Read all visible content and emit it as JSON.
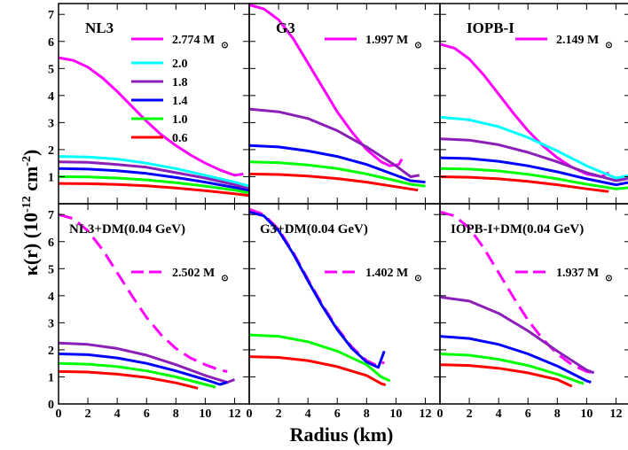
{
  "chart_data": {
    "type": "line",
    "xlabel": "Radius (km)",
    "ylabel": "κ(r) (10",
    "ylabel_exp1": "-12",
    "ylabel_unit": " cm",
    "ylabel_exp2": "-2",
    "ylabel_close": ")",
    "xlim": [
      0,
      13
    ],
    "xticks": [
      "0",
      "2",
      "4",
      "6",
      "8",
      "10",
      "12"
    ],
    "ylim_top": [
      0,
      7.4
    ],
    "yticks_top": [
      "1",
      "2",
      "3",
      "4",
      "5",
      "6",
      "7"
    ],
    "ylim_bottom": [
      0,
      7.4
    ],
    "yticks_bottom": [
      "0",
      "1",
      "2",
      "3",
      "4",
      "5",
      "6",
      "7"
    ],
    "colors": {
      "2.774": "#ff00ff",
      "2.0": "#00ffff",
      "1.8": "#8b1fb8",
      "1.4": "#0000ff",
      "1.0": "#00ff00",
      "0.6": "#ff0000"
    },
    "legend_mass_labels": [
      "2.774 M",
      "2.0",
      "1.8",
      "1.4",
      "1.0",
      "0.6"
    ],
    "panels": [
      {
        "title": "NL3",
        "max_mass_label": "2.774 M",
        "series": [
          {
            "name": "2.774 M",
            "color": "#ff00ff",
            "style": "solid",
            "x": [
              0,
              1,
              2,
              3,
              4,
              5,
              6,
              7,
              8,
              9,
              10,
              11,
              12,
              12.6
            ],
            "y": [
              5.4,
              5.3,
              5.05,
              4.65,
              4.15,
              3.6,
              3.05,
              2.55,
              2.15,
              1.8,
              1.5,
              1.25,
              1.05,
              1.1
            ]
          },
          {
            "name": "2.0",
            "color": "#00ffff",
            "style": "solid",
            "x": [
              0,
              2,
              4,
              6,
              8,
              10,
              12,
              13
            ],
            "y": [
              1.75,
              1.73,
              1.65,
              1.5,
              1.3,
              1.05,
              0.8,
              0.65
            ]
          },
          {
            "name": "1.8",
            "color": "#8b1fb8",
            "style": "solid",
            "x": [
              0,
              2,
              4,
              6,
              8,
              10,
              12,
              13
            ],
            "y": [
              1.55,
              1.53,
              1.45,
              1.35,
              1.15,
              0.95,
              0.7,
              0.55
            ]
          },
          {
            "name": "1.4",
            "color": "#0000ff",
            "style": "solid",
            "x": [
              0,
              2,
              4,
              6,
              8,
              10,
              12,
              13
            ],
            "y": [
              1.3,
              1.28,
              1.22,
              1.12,
              0.97,
              0.8,
              0.6,
              0.48
            ]
          },
          {
            "name": "1.0",
            "color": "#00ff00",
            "style": "solid",
            "x": [
              0,
              2,
              4,
              6,
              8,
              10,
              12,
              13
            ],
            "y": [
              1.0,
              0.99,
              0.95,
              0.88,
              0.78,
              0.65,
              0.5,
              0.4
            ]
          },
          {
            "name": "0.6",
            "color": "#ff0000",
            "style": "solid",
            "x": [
              0,
              2,
              4,
              6,
              8,
              10,
              12,
              13
            ],
            "y": [
              0.75,
              0.74,
              0.71,
              0.66,
              0.58,
              0.48,
              0.37,
              0.3
            ]
          }
        ]
      },
      {
        "title": "G3",
        "max_mass_label": "1.997 M",
        "series": [
          {
            "name": "1.997 M",
            "color": "#ff00ff",
            "style": "solid",
            "x": [
              0,
              1,
              2,
              3,
              4,
              5,
              6,
              7,
              8,
              9,
              9.6,
              10.2,
              10.4
            ],
            "y": [
              7.35,
              7.2,
              6.8,
              6.1,
              5.2,
              4.3,
              3.4,
              2.65,
              2.0,
              1.55,
              1.4,
              1.45,
              1.65
            ]
          },
          {
            "name": "1.8",
            "color": "#8b1fb8",
            "style": "solid",
            "x": [
              0,
              2,
              4,
              6,
              8,
              10,
              11,
              11.6
            ],
            "y": [
              3.5,
              3.4,
              3.15,
              2.7,
              2.1,
              1.4,
              1.0,
              1.05
            ]
          },
          {
            "name": "1.4",
            "color": "#0000ff",
            "style": "solid",
            "x": [
              0,
              2,
              4,
              6,
              8,
              10,
              11,
              12
            ],
            "y": [
              2.15,
              2.1,
              1.95,
              1.75,
              1.45,
              1.05,
              0.85,
              0.8
            ]
          },
          {
            "name": "1.0",
            "color": "#00ff00",
            "style": "solid",
            "x": [
              0,
              2,
              4,
              6,
              8,
              10,
              11,
              12
            ],
            "y": [
              1.55,
              1.52,
              1.43,
              1.3,
              1.1,
              0.85,
              0.72,
              0.65
            ]
          },
          {
            "name": "0.6",
            "color": "#ff0000",
            "style": "solid",
            "x": [
              0,
              2,
              4,
              6,
              8,
              10,
              11.5
            ],
            "y": [
              1.1,
              1.08,
              1.02,
              0.93,
              0.8,
              0.63,
              0.5
            ]
          }
        ]
      },
      {
        "title": "IOPB-I",
        "max_mass_label": "2.149 M",
        "series": [
          {
            "name": "2.149 M",
            "color": "#ff00ff",
            "style": "solid",
            "x": [
              0,
              1,
              2,
              3,
              4,
              5,
              6,
              7,
              8,
              9,
              10,
              11,
              11.5
            ],
            "y": [
              5.9,
              5.75,
              5.35,
              4.75,
              4.05,
              3.35,
              2.7,
              2.15,
              1.7,
              1.35,
              1.1,
              1.0,
              1.15
            ]
          },
          {
            "name": "2.0",
            "color": "#00ffff",
            "style": "solid",
            "x": [
              0,
              2,
              4,
              6,
              8,
              10,
              12,
              13
            ],
            "y": [
              3.2,
              3.1,
              2.85,
              2.45,
              1.95,
              1.4,
              0.95,
              1.05
            ]
          },
          {
            "name": "1.8",
            "color": "#8b1fb8",
            "style": "solid",
            "x": [
              0,
              2,
              4,
              6,
              8,
              10,
              12,
              13
            ],
            "y": [
              2.4,
              2.35,
              2.18,
              1.9,
              1.55,
              1.15,
              0.85,
              0.95
            ]
          },
          {
            "name": "1.4",
            "color": "#0000ff",
            "style": "solid",
            "x": [
              0,
              2,
              4,
              6,
              8,
              10,
              12,
              13
            ],
            "y": [
              1.7,
              1.67,
              1.57,
              1.4,
              1.18,
              0.92,
              0.7,
              0.8
            ]
          },
          {
            "name": "1.0",
            "color": "#00ff00",
            "style": "solid",
            "x": [
              0,
              2,
              4,
              6,
              8,
              10,
              12,
              13
            ],
            "y": [
              1.3,
              1.28,
              1.21,
              1.09,
              0.92,
              0.72,
              0.55,
              0.6
            ]
          },
          {
            "name": "0.6",
            "color": "#ff0000",
            "style": "solid",
            "x": [
              0,
              2,
              4,
              6,
              8,
              10,
              11.5
            ],
            "y": [
              1.0,
              0.98,
              0.92,
              0.83,
              0.7,
              0.55,
              0.45
            ]
          }
        ]
      },
      {
        "title": "NL3+DM(0.04 GeV)",
        "max_mass_label": "2.502 M",
        "series": [
          {
            "name": "2.502 M",
            "color": "#ff00ff",
            "style": "dashed",
            "x": [
              0,
              1,
              2,
              3,
              4,
              5,
              6,
              7,
              8,
              9,
              10,
              11,
              11.5
            ],
            "y": [
              7.0,
              6.85,
              6.4,
              5.7,
              4.85,
              4.0,
              3.2,
              2.55,
              2.05,
              1.7,
              1.45,
              1.25,
              1.2
            ]
          },
          {
            "name": "1.8",
            "color": "#8b1fb8",
            "style": "solid",
            "x": [
              0,
              2,
              4,
              6,
              8,
              10,
              11.5,
              12
            ],
            "y": [
              2.25,
              2.2,
              2.05,
              1.8,
              1.45,
              1.05,
              0.8,
              0.9
            ]
          },
          {
            "name": "1.4",
            "color": "#0000ff",
            "style": "solid",
            "x": [
              0,
              2,
              4,
              6,
              8,
              10,
              11,
              11.5
            ],
            "y": [
              1.85,
              1.82,
              1.7,
              1.5,
              1.22,
              0.9,
              0.72,
              0.8
            ]
          },
          {
            "name": "1.0",
            "color": "#00ff00",
            "style": "solid",
            "x": [
              0,
              2,
              4,
              6,
              8,
              10,
              10.7
            ],
            "y": [
              1.5,
              1.47,
              1.38,
              1.22,
              1.0,
              0.72,
              0.62
            ]
          },
          {
            "name": "0.6",
            "color": "#ff0000",
            "style": "solid",
            "x": [
              0,
              2,
              4,
              6,
              8,
              9.5
            ],
            "y": [
              1.2,
              1.18,
              1.1,
              0.98,
              0.78,
              0.58
            ]
          }
        ]
      },
      {
        "title": "G3+DM(0.04 GeV)",
        "max_mass_label": "1.402 M",
        "series": [
          {
            "name": "1.402 M",
            "color": "#ff00ff",
            "style": "dashed",
            "x": [
              0,
              1,
              2,
              3,
              4,
              5,
              6,
              7,
              8,
              8.8,
              9.2
            ],
            "y": [
              7.2,
              7.0,
              6.45,
              5.6,
              4.6,
              3.65,
              2.8,
              2.1,
              1.6,
              1.4,
              1.55
            ]
          },
          {
            "name": "1.4",
            "color": "#0000ff",
            "style": "solid",
            "x": [
              0,
              1,
              2,
              3,
              4,
              5,
              6,
              7,
              8,
              8.8,
              9.2
            ],
            "y": [
              7.1,
              6.95,
              6.4,
              5.55,
              4.55,
              3.6,
              2.75,
              2.05,
              1.55,
              1.35,
              1.95
            ]
          },
          {
            "name": "1.0",
            "color": "#00ff00",
            "style": "solid",
            "x": [
              0,
              2,
              4,
              6,
              8,
              9,
              9.6
            ],
            "y": [
              2.55,
              2.5,
              2.3,
              1.95,
              1.45,
              1.0,
              0.85
            ]
          },
          {
            "name": "0.6",
            "color": "#ff0000",
            "style": "solid",
            "x": [
              0,
              2,
              4,
              6,
              8,
              9,
              9.3
            ],
            "y": [
              1.75,
              1.72,
              1.6,
              1.38,
              1.05,
              0.75,
              0.7
            ]
          }
        ]
      },
      {
        "title": "IOPB-I+DM(0.04 GeV)",
        "max_mass_label": "1.937 M",
        "series": [
          {
            "name": "1.937 M",
            "color": "#ff00ff",
            "style": "dashed",
            "x": [
              0,
              1,
              2,
              3,
              4,
              5,
              6,
              7,
              8,
              9,
              10,
              10.5
            ],
            "y": [
              7.1,
              6.95,
              6.5,
              5.75,
              4.85,
              3.95,
              3.1,
              2.4,
              1.85,
              1.45,
              1.2,
              1.15
            ]
          },
          {
            "name": "1.8",
            "color": "#8b1fb8",
            "style": "solid",
            "x": [
              0,
              2,
              4,
              6,
              8,
              10,
              10.5
            ],
            "y": [
              3.95,
              3.8,
              3.35,
              2.7,
              1.95,
              1.25,
              1.15
            ]
          },
          {
            "name": "1.4",
            "color": "#0000ff",
            "style": "solid",
            "x": [
              0,
              2,
              4,
              6,
              8,
              10,
              10.3
            ],
            "y": [
              2.5,
              2.42,
              2.2,
              1.85,
              1.4,
              0.85,
              0.8
            ]
          },
          {
            "name": "1.0",
            "color": "#00ff00",
            "style": "solid",
            "x": [
              0,
              2,
              4,
              6,
              8,
              9.5,
              9.8
            ],
            "y": [
              1.85,
              1.8,
              1.65,
              1.42,
              1.1,
              0.8,
              0.75
            ]
          },
          {
            "name": "0.6",
            "color": "#ff0000",
            "style": "solid",
            "x": [
              0,
              2,
              4,
              6,
              8,
              9
            ],
            "y": [
              1.45,
              1.42,
              1.32,
              1.15,
              0.9,
              0.65
            ]
          }
        ]
      }
    ]
  }
}
